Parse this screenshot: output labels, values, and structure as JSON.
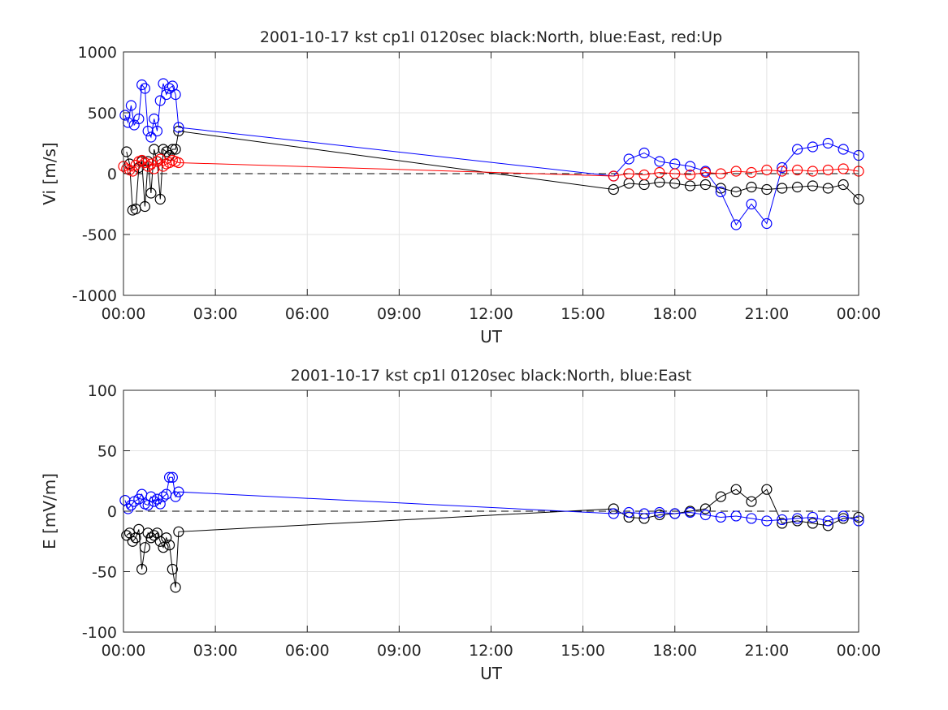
{
  "chart_data": [
    {
      "type": "scatter",
      "title": "2001-10-17 kst cp1l 0120sec black:North, blue:East, red:Up",
      "xlabel": "UT",
      "ylabel": "Vi [m/s]",
      "xlim": [
        0,
        24
      ],
      "ylim": [
        -1000,
        1000
      ],
      "xticks": [
        0,
        3,
        6,
        9,
        12,
        15,
        18,
        21,
        24
      ],
      "xticklabels": [
        "00:00",
        "03:00",
        "06:00",
        "09:00",
        "12:00",
        "15:00",
        "18:00",
        "21:00",
        "00:00"
      ],
      "yticks": [
        -1000,
        -500,
        0,
        500,
        1000
      ],
      "yticklabels": [
        "-1000",
        "-500",
        "0",
        "500",
        "1000"
      ],
      "grid": true,
      "reference_line": 0,
      "series": [
        {
          "name": "North",
          "color": "#000000",
          "x": [
            0.1,
            0.2,
            0.3,
            0.4,
            0.5,
            0.6,
            0.7,
            0.8,
            0.9,
            1.0,
            1.1,
            1.2,
            1.3,
            1.4,
            1.5,
            1.6,
            1.7,
            1.8,
            16.0,
            16.5,
            17.0,
            17.5,
            18.0,
            18.5,
            19.0,
            19.5,
            20.0,
            20.5,
            21.0,
            21.5,
            22.0,
            22.5,
            23.0,
            23.5,
            24.0
          ],
          "y": [
            180,
            80,
            -300,
            -290,
            50,
            100,
            -270,
            100,
            -160,
            200,
            100,
            -210,
            200,
            180,
            150,
            200,
            200,
            350,
            -130,
            -80,
            -90,
            -70,
            -80,
            -100,
            -90,
            -120,
            -150,
            -110,
            -130,
            -120,
            -110,
            -100,
            -120,
            -90,
            -210
          ]
        },
        {
          "name": "East",
          "color": "#0000ff",
          "x": [
            0.05,
            0.15,
            0.25,
            0.35,
            0.5,
            0.6,
            0.7,
            0.8,
            0.9,
            1.0,
            1.1,
            1.2,
            1.3,
            1.4,
            1.5,
            1.6,
            1.7,
            1.8,
            16.0,
            16.5,
            17.0,
            17.5,
            18.0,
            18.5,
            19.0,
            19.5,
            20.0,
            20.5,
            21.0,
            21.5,
            22.0,
            22.5,
            23.0,
            23.5,
            24.0
          ],
          "y": [
            480,
            420,
            560,
            400,
            450,
            730,
            700,
            350,
            300,
            450,
            350,
            600,
            740,
            650,
            700,
            720,
            650,
            380,
            -20,
            120,
            170,
            100,
            80,
            60,
            20,
            -150,
            -420,
            -250,
            -410,
            50,
            200,
            220,
            250,
            200,
            150
          ]
        },
        {
          "name": "Up",
          "color": "#ff0000",
          "x": [
            0.0,
            0.1,
            0.2,
            0.3,
            0.4,
            0.5,
            0.6,
            0.7,
            0.8,
            0.9,
            1.0,
            1.1,
            1.2,
            1.3,
            1.4,
            1.5,
            1.6,
            1.7,
            1.8,
            16.0,
            16.5,
            17.0,
            17.5,
            18.0,
            18.5,
            19.0,
            19.5,
            20.0,
            20.5,
            21.0,
            21.5,
            22.0,
            22.5,
            23.0,
            23.5,
            24.0
          ],
          "y": [
            60,
            40,
            30,
            20,
            70,
            100,
            110,
            90,
            60,
            80,
            40,
            100,
            120,
            60,
            80,
            90,
            110,
            100,
            90,
            -20,
            0,
            -10,
            10,
            0,
            -10,
            10,
            0,
            20,
            10,
            30,
            20,
            30,
            20,
            30,
            40,
            20
          ]
        }
      ]
    },
    {
      "type": "scatter",
      "title": "2001-10-17 kst cp1l 0120sec black:North, blue:East",
      "xlabel": "UT",
      "ylabel": "E [mV/m]",
      "xlim": [
        0,
        24
      ],
      "ylim": [
        -100,
        100
      ],
      "xticks": [
        0,
        3,
        6,
        9,
        12,
        15,
        18,
        21,
        24
      ],
      "xticklabels": [
        "00:00",
        "03:00",
        "06:00",
        "09:00",
        "12:00",
        "15:00",
        "18:00",
        "21:00",
        "00:00"
      ],
      "yticks": [
        -100,
        -50,
        0,
        50,
        100
      ],
      "yticklabels": [
        "-100",
        "-50",
        "0",
        "50",
        "100"
      ],
      "grid": true,
      "reference_line": 0,
      "series": [
        {
          "name": "North",
          "color": "#000000",
          "x": [
            0.1,
            0.2,
            0.3,
            0.4,
            0.5,
            0.6,
            0.7,
            0.8,
            0.9,
            1.0,
            1.1,
            1.2,
            1.3,
            1.4,
            1.5,
            1.6,
            1.7,
            1.8,
            16.0,
            16.5,
            17.0,
            17.5,
            18.0,
            18.5,
            19.0,
            19.5,
            20.0,
            20.5,
            21.0,
            21.5,
            22.0,
            22.5,
            23.0,
            23.5,
            24.0
          ],
          "y": [
            -20,
            -18,
            -25,
            -22,
            -15,
            -48,
            -30,
            -18,
            -22,
            -20,
            -18,
            -25,
            -30,
            -22,
            -28,
            -48,
            -63,
            -17,
            2,
            -5,
            -6,
            -3,
            -2,
            0,
            2,
            12,
            18,
            8,
            18,
            -10,
            -8,
            -10,
            -12,
            -6,
            -5
          ]
        },
        {
          "name": "East",
          "color": "#0000ff",
          "x": [
            0.05,
            0.15,
            0.25,
            0.35,
            0.5,
            0.6,
            0.7,
            0.8,
            0.9,
            1.0,
            1.1,
            1.2,
            1.3,
            1.4,
            1.5,
            1.6,
            1.7,
            1.8,
            16.0,
            16.5,
            17.0,
            17.5,
            18.0,
            18.5,
            19.0,
            19.5,
            20.0,
            20.5,
            21.0,
            21.5,
            22.0,
            22.5,
            23.0,
            23.5,
            24.0
          ],
          "y": [
            9,
            2,
            5,
            8,
            10,
            14,
            6,
            5,
            12,
            8,
            10,
            6,
            12,
            14,
            28,
            28,
            12,
            16,
            -2,
            -1,
            -2,
            -1,
            -2,
            -1,
            -3,
            -5,
            -4,
            -6,
            -8,
            -7,
            -6,
            -5,
            -8,
            -4,
            -8
          ]
        }
      ]
    }
  ]
}
